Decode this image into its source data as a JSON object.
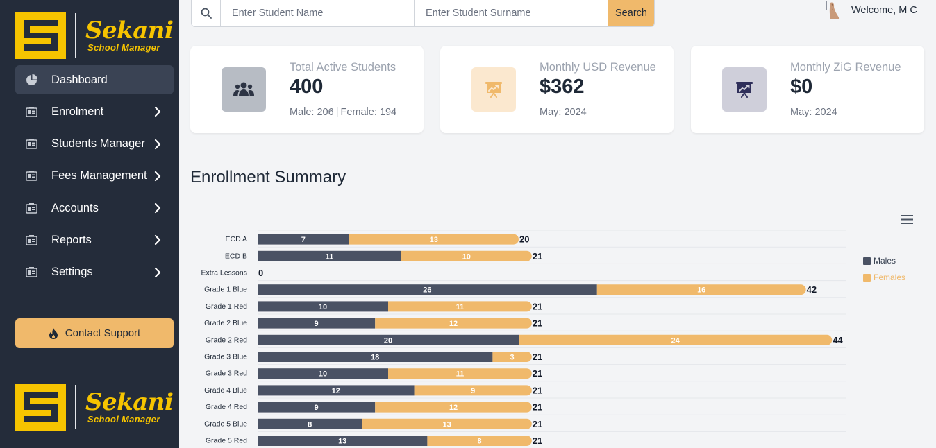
{
  "brand": {
    "name": "Sekani",
    "subtitle": "School Manager",
    "colors": {
      "yellow": "#f6c400",
      "sidebar": "#242c3a",
      "accent": "#f0b96b"
    }
  },
  "sidebar": {
    "items": [
      {
        "label": "Dashboard",
        "icon": "pie-chart-icon",
        "active": true
      },
      {
        "label": "Enrolment",
        "icon": "id-card-icon",
        "chevron": true
      },
      {
        "label": "Students Manager",
        "icon": "id-card-icon",
        "chevron": true
      },
      {
        "label": "Fees Management",
        "icon": "id-card-icon",
        "chevron": true
      },
      {
        "label": "Accounts",
        "icon": "id-card-icon",
        "chevron": true
      },
      {
        "label": "Reports",
        "icon": "id-card-icon",
        "chevron": true
      },
      {
        "label": "Settings",
        "icon": "id-card-icon",
        "chevron": true
      }
    ],
    "support_label": "Contact Support"
  },
  "search": {
    "name_placeholder": "Enter Student Name",
    "surname_placeholder": "Enter Student Surname",
    "button_label": "Search"
  },
  "user": {
    "welcome": "Welcome, M C"
  },
  "stats": [
    {
      "title": "Total Active Students",
      "value": "400",
      "sub_left": "Male: 206",
      "sub_right": "Female: 194",
      "icon": "users-icon"
    },
    {
      "title": "Monthly USD Revenue",
      "value": "$362",
      "sub": "May: 2024",
      "icon": "presentation-chart-icon"
    },
    {
      "title": "Monthly ZiG Revenue",
      "value": "$0",
      "sub": "May: 2024",
      "icon": "presentation-chart-icon"
    }
  ],
  "section_title": "Enrollment Summary",
  "chart_data": {
    "type": "bar",
    "orientation": "horizontal",
    "stacked": true,
    "title": "Enrollment Summary",
    "categories": [
      "ECD A",
      "ECD B",
      "Extra Lessons",
      "Grade 1 Blue",
      "Grade 1 Red",
      "Grade 2 Blue",
      "Grade 2 Red",
      "Grade 3 Blue",
      "Grade 3 Red",
      "Grade 4 Blue",
      "Grade 4 Red",
      "Grade 5 Blue",
      "Grade 5 Red"
    ],
    "series": [
      {
        "name": "Males",
        "color": "#4a5264",
        "values": [
          7,
          11,
          0,
          26,
          10,
          9,
          20,
          18,
          10,
          12,
          9,
          8,
          13
        ]
      },
      {
        "name": "Females",
        "color": "#f0b96b",
        "values": [
          13,
          10,
          0,
          16,
          11,
          12,
          24,
          3,
          11,
          9,
          12,
          13,
          8
        ]
      }
    ],
    "totals": [
      20,
      21,
      0,
      42,
      21,
      21,
      44,
      21,
      21,
      21,
      21,
      21,
      21
    ],
    "xlim": [
      0,
      45
    ],
    "legend_position": "right"
  }
}
